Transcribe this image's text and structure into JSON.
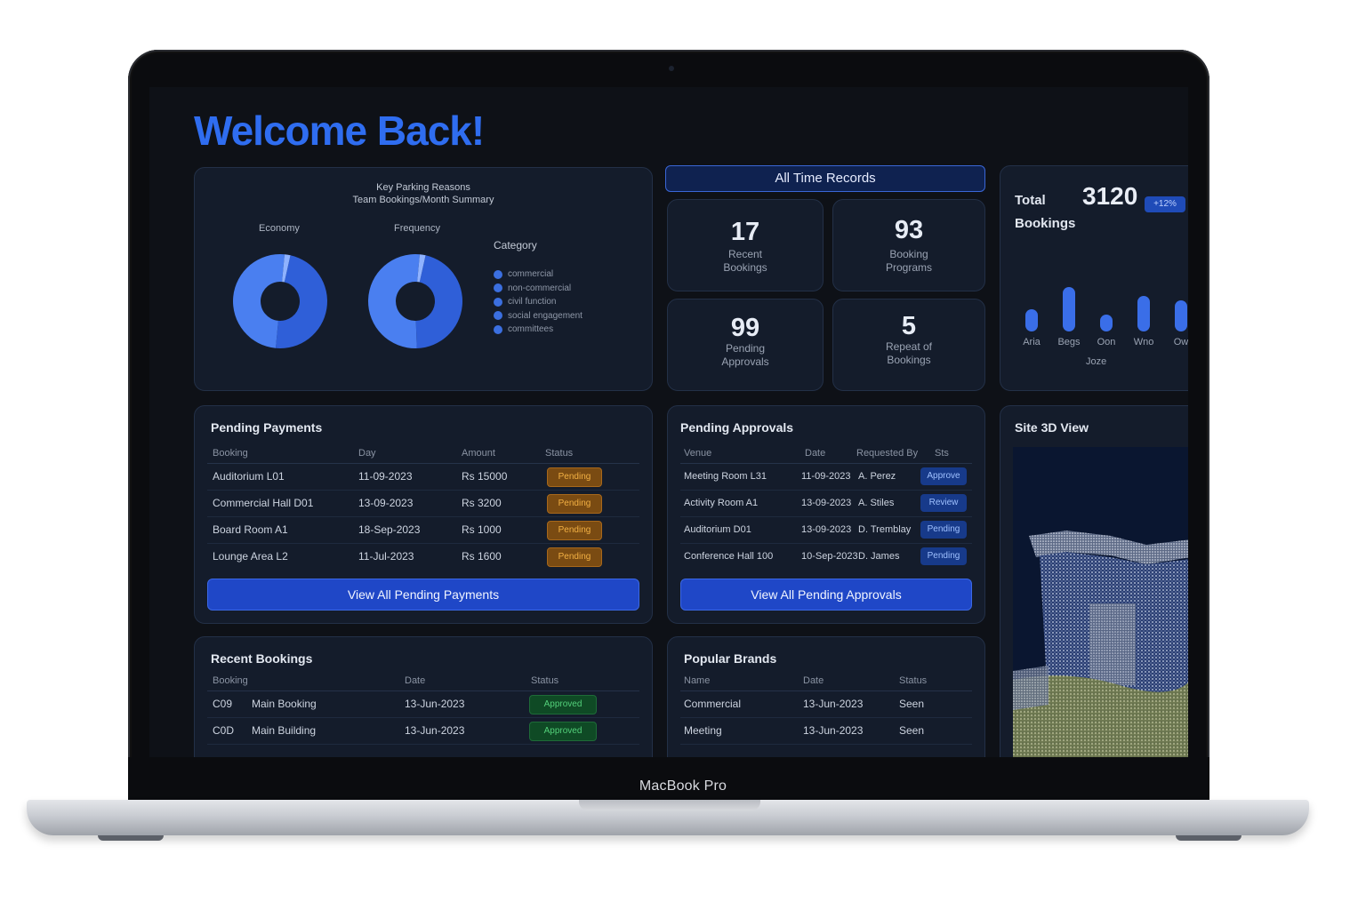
{
  "device": {
    "label": "MacBook Pro"
  },
  "welcome": "Welcome Back!",
  "chart_card": {
    "title_line1": "Key Parking Reasons",
    "title_line2": "Team Bookings/Month Summary",
    "donut1_label": "Economy",
    "donut2_label": "Frequency",
    "legend_title": "Category",
    "legend": [
      "commercial",
      "non-commercial",
      "civil function",
      "social engagement",
      "committees"
    ]
  },
  "chart_data": [
    {
      "type": "pie",
      "categories": [
        "segment A",
        "segment B",
        "segment C"
      ],
      "values": [
        48,
        50,
        2
      ],
      "colors": [
        "#2f5fd8",
        "#4a7ff0",
        "#8fb2ff"
      ]
    },
    {
      "type": "pie",
      "categories": [
        "segment A",
        "segment B",
        "segment C"
      ],
      "values": [
        46,
        52,
        2
      ],
      "colors": [
        "#2f5fd8",
        "#4a7ff0",
        "#8fb2ff"
      ]
    },
    {
      "type": "bar",
      "categories": [
        "Aria",
        "Begs",
        "Oon",
        "Wno",
        "Ow"
      ],
      "values": [
        24,
        48,
        18,
        38,
        34
      ],
      "xlabel": "Joze",
      "ylim": [
        0,
        50
      ],
      "color": "#3a6ee8"
    }
  ],
  "records": {
    "header": "All Time Records",
    "stats": [
      {
        "value": "17",
        "label_line1": "Recent",
        "label_line2": "Bookings"
      },
      {
        "value": "93",
        "label_line1": "Booking",
        "label_line2": "Programs"
      },
      {
        "value": "99",
        "label_line1": "Pending",
        "label_line2": "Approvals"
      },
      {
        "value": "5",
        "label_line1": "Repeat of",
        "label_line2": "Bookings"
      }
    ]
  },
  "total_bookings": {
    "title_line1": "Total",
    "title_line2": "Bookings",
    "value": "3120",
    "badge": "+12%"
  },
  "pending_payments": {
    "title": "Pending Payments",
    "columns": [
      "Booking",
      "Day",
      "Amount",
      "Status"
    ],
    "rows": [
      [
        "Auditorium L01",
        "11-09-2023",
        "Rs 15000",
        "Pending"
      ],
      [
        "Commercial Hall D01",
        "13-09-2023",
        "Rs 3200",
        "Pending"
      ],
      [
        "Board Room A1",
        "18-Sep-2023",
        "Rs 1000",
        "Pending"
      ],
      [
        "Lounge Area L2",
        "11-Jul-2023",
        "Rs 1600",
        "Pending"
      ]
    ],
    "button": "View All Pending Payments"
  },
  "pending_approvals": {
    "title": "Pending Approvals",
    "columns": [
      "Venue",
      "Date",
      "Requested By",
      "Sts"
    ],
    "rows": [
      [
        "Meeting Room L31",
        "11-09-2023",
        "A. Perez",
        "Approve"
      ],
      [
        "Activity Room A1",
        "13-09-2023",
        "A. Stiles",
        "Review"
      ],
      [
        "Auditorium D01",
        "13-09-2023",
        "D. Tremblay",
        "Pending"
      ],
      [
        "Conference Hall 100",
        "10-Sep-2023",
        "D. James",
        "Pending"
      ]
    ],
    "button": "View All Pending Approvals"
  },
  "site_view": {
    "title": "Site 3D View"
  },
  "recent_bookings": {
    "title": "Recent Bookings",
    "columns": [
      "Booking",
      "Date",
      "Status"
    ],
    "rows": [
      [
        "C09",
        "Main Booking",
        "13-Jun-2023",
        "Approved"
      ],
      [
        "C0D",
        "Main Building",
        "13-Jun-2023",
        "Approved"
      ]
    ]
  },
  "popular_brands": {
    "title": "Popular Brands",
    "columns": [
      "Name",
      "Date",
      "Status"
    ],
    "rows": [
      [
        "Commercial",
        "13-Jun-2023",
        "Seen"
      ],
      [
        "Meeting",
        "13-Jun-2023",
        "Seen"
      ]
    ]
  }
}
